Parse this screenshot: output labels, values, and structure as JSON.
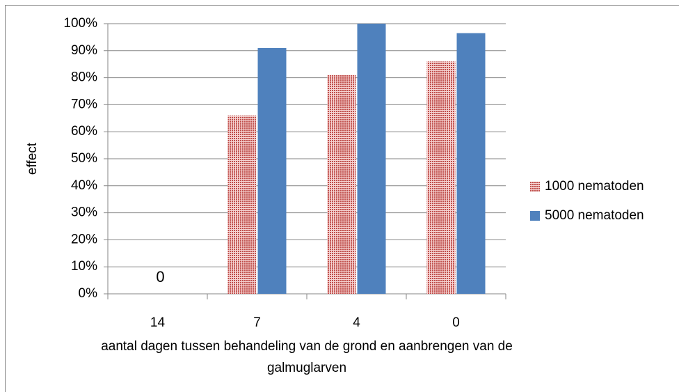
{
  "chart_data": {
    "type": "bar",
    "categories": [
      "14",
      "7",
      "4",
      "0"
    ],
    "series": [
      {
        "name": "1000 nematoden",
        "color": "#c0504d",
        "values": [
          0,
          66,
          81,
          86
        ]
      },
      {
        "name": "5000 nematoden",
        "color": "#4f81bd",
        "values": [
          0,
          91,
          100,
          96.5
        ]
      }
    ],
    "ylim": [
      0,
      100
    ],
    "yticks": [
      {
        "value": 0,
        "label": "0%"
      },
      {
        "value": 10,
        "label": "10%"
      },
      {
        "value": 20,
        "label": "20%"
      },
      {
        "value": 30,
        "label": "30%"
      },
      {
        "value": 40,
        "label": "40%"
      },
      {
        "value": 50,
        "label": "50%"
      },
      {
        "value": 60,
        "label": "60%"
      },
      {
        "value": 70,
        "label": "70%"
      },
      {
        "value": 80,
        "label": "80%"
      },
      {
        "value": 90,
        "label": "90%"
      },
      {
        "value": 100,
        "label": "100%"
      }
    ],
    "ylabel": "effect",
    "xlabel": [
      "aantal dagen tussen behandeling van de grond en aanbrengen van de",
      "galmuglarven"
    ],
    "annotations": [
      "0"
    ],
    "grid": true,
    "legend": "right"
  }
}
